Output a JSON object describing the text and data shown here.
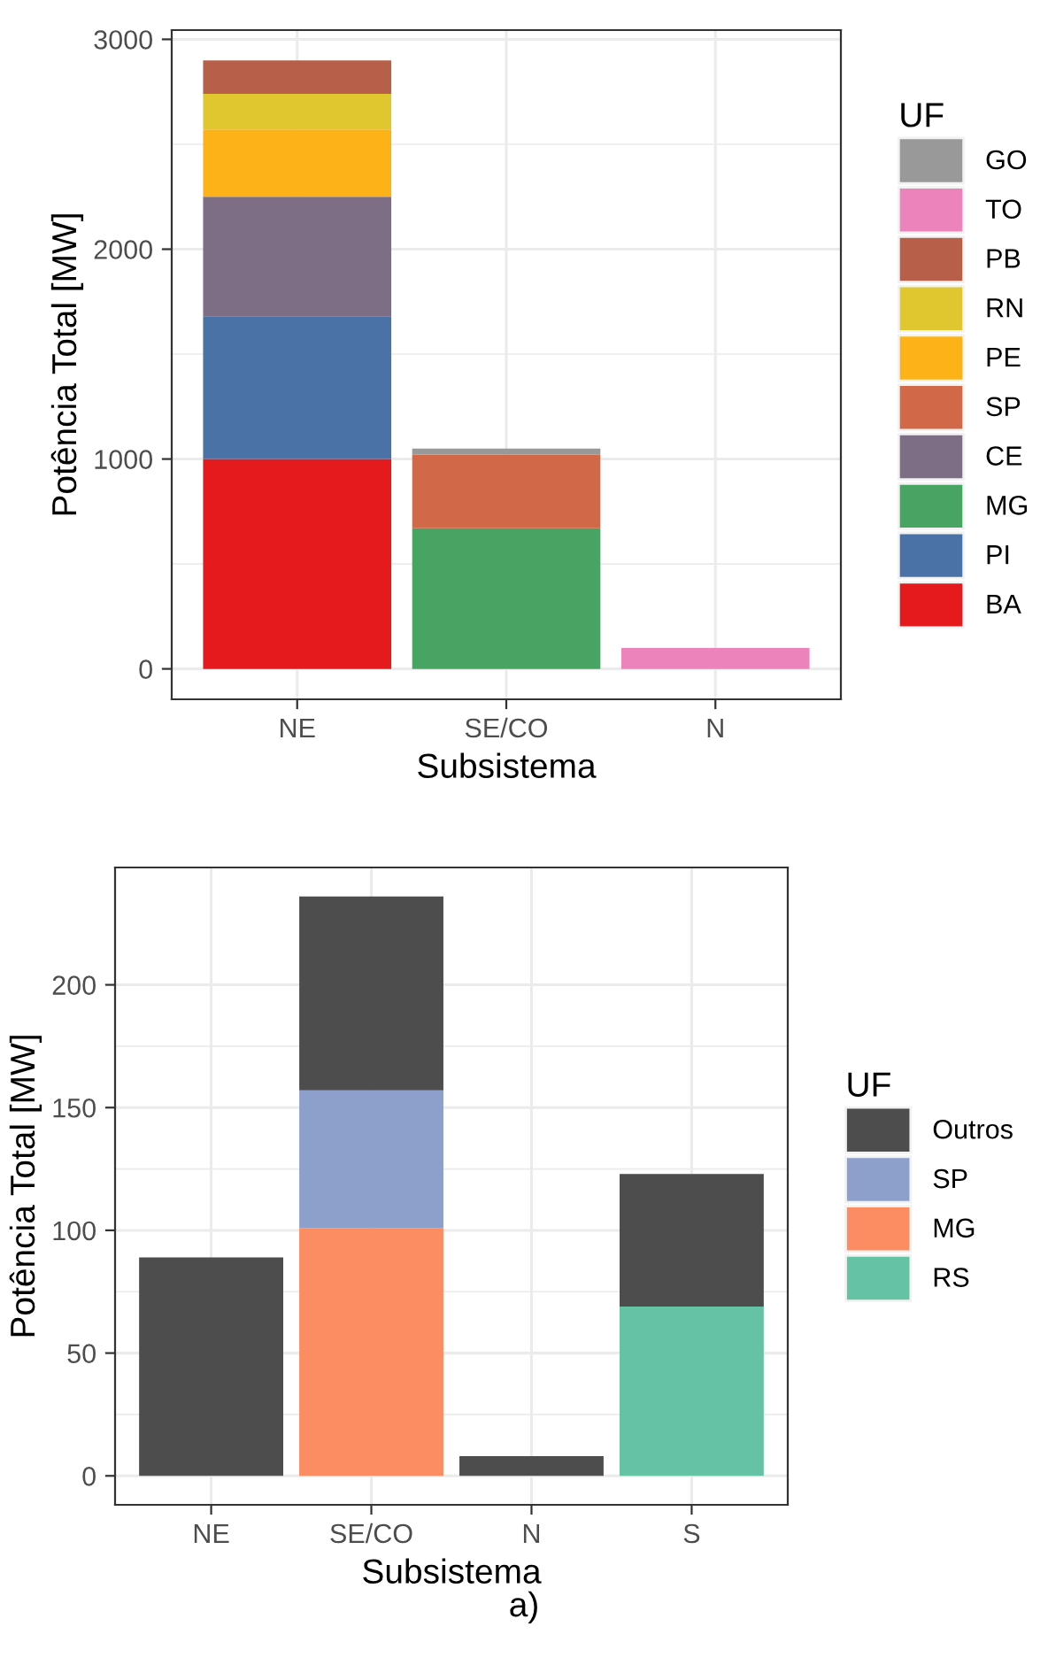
{
  "chart_data": [
    {
      "type": "bar",
      "stacked": true,
      "xlabel": "Subsistema",
      "ylabel": "Potência Total [MW]",
      "legend_title": "UF",
      "legend": "right",
      "grid": true,
      "categories": [
        "NE",
        "SE/CO",
        "N"
      ],
      "ylim": [
        -145,
        3044
      ],
      "yticks": [
        0,
        1000,
        2000,
        3000
      ],
      "series": [
        {
          "name": "BA",
          "color": "#e41a1c",
          "values": [
            1000,
            null,
            null
          ]
        },
        {
          "name": "PI",
          "color": "#4a72a6",
          "values": [
            680,
            null,
            null
          ]
        },
        {
          "name": "MG",
          "color": "#48a462",
          "values": [
            null,
            670,
            null
          ]
        },
        {
          "name": "CE",
          "color": "#7e6e85",
          "values": [
            570,
            null,
            null
          ]
        },
        {
          "name": "SP",
          "color": "#d16948",
          "values": [
            null,
            350,
            null
          ]
        },
        {
          "name": "PE",
          "color": "#fdb217",
          "values": [
            320,
            null,
            null
          ]
        },
        {
          "name": "RN",
          "color": "#e1c72f",
          "values": [
            170,
            null,
            null
          ]
        },
        {
          "name": "PB",
          "color": "#b75f49",
          "values": [
            160,
            null,
            null
          ]
        },
        {
          "name": "TO",
          "color": "#ec83ba",
          "values": [
            null,
            null,
            100
          ]
        },
        {
          "name": "GO",
          "color": "#999999",
          "values": [
            null,
            30,
            null
          ]
        }
      ]
    },
    {
      "type": "bar",
      "stacked": true,
      "xlabel": "Subsistema",
      "ylabel": "Potência Total [MW]",
      "legend_title": "UF",
      "legend": "right",
      "grid": true,
      "categories": [
        "NE",
        "SE/CO",
        "N",
        "S"
      ],
      "ylim": [
        -11.8,
        247.8
      ],
      "yticks": [
        0,
        50,
        100,
        150,
        200
      ],
      "annotations": [
        "a)"
      ],
      "series": [
        {
          "name": "RS",
          "color": "#66c2a5",
          "values": [
            null,
            null,
            null,
            69
          ]
        },
        {
          "name": "MG",
          "color": "#fc8d62",
          "values": [
            null,
            101,
            null,
            null
          ]
        },
        {
          "name": "SP",
          "color": "#8da0cb",
          "values": [
            null,
            56,
            null,
            null
          ]
        },
        {
          "name": "Outros",
          "color": "#4d4d4d",
          "values": [
            89,
            79,
            8,
            54
          ]
        }
      ]
    }
  ]
}
